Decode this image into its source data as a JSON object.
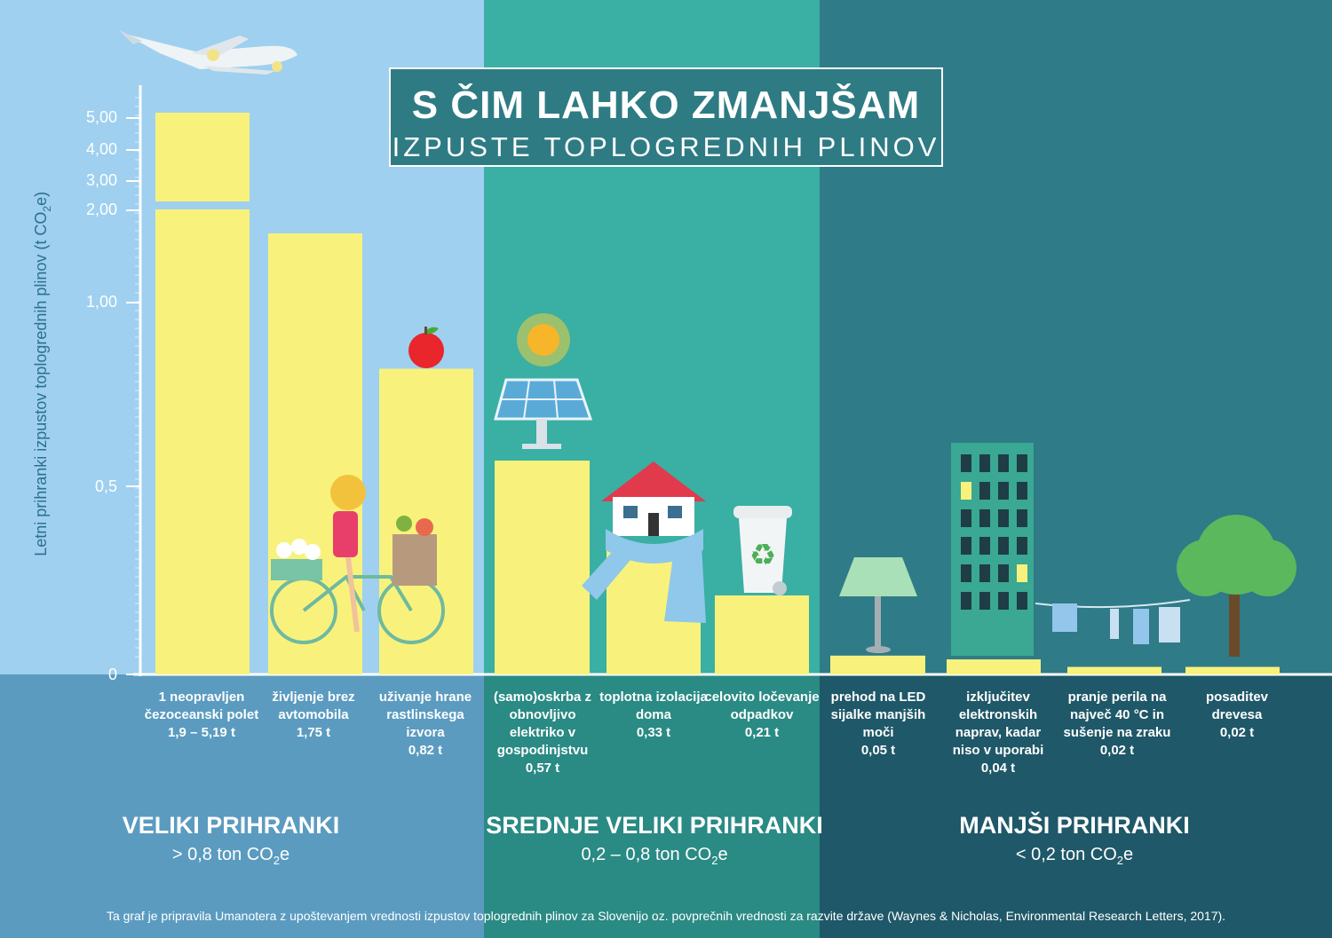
{
  "title": {
    "main": "S ČIM LAHKO ZMANJŠAM",
    "sub": "IZPUSTE  TOPLOGREDNIH  PLINOV"
  },
  "colors": {
    "panel_large": "#9fd0ef",
    "panel_medium": "#3aafa3",
    "panel_small": "#2f7b87",
    "bottom_large": "#5b9bc0",
    "bottom_medium": "#2a8a84",
    "bottom_small": "#1f5868",
    "bar": "#f8f27c",
    "axis": "#ffffff"
  },
  "chart_data": {
    "type": "bar",
    "ylabel": "Letni prihranki izpustov toplogrednih plinov (t CO",
    "ylabel_sub": "2",
    "ylabel_end": "e)",
    "yticks": [
      "0",
      "0,5",
      "1,00",
      "2,00",
      "3,00",
      "4,00",
      "5,00"
    ],
    "axis_note": "broken non-linear y-axis (0 – 5 t CO2e)",
    "categories": [
      {
        "label": "1 neopravljen čezoceanski polet",
        "value_label": "1,9 – 5,19 t",
        "value": 5.19,
        "value_min": 1.9,
        "group": "large"
      },
      {
        "label": "življenje brez avtomobila",
        "value_label": "1,75 t",
        "value": 1.75,
        "group": "large"
      },
      {
        "label": "uživanje hrane rastlinskega izvora",
        "value_label": "0,82 t",
        "value": 0.82,
        "group": "large"
      },
      {
        "label": "(samo)oskrba z obnovljivo elektriko v gospodinjstvu",
        "value_label": "0,57 t",
        "value": 0.57,
        "group": "medium"
      },
      {
        "label": "toplotna izolacija doma",
        "value_label": "0,33 t",
        "value": 0.33,
        "group": "medium"
      },
      {
        "label": "celovito ločevanje odpadkov",
        "value_label": "0,21 t",
        "value": 0.21,
        "group": "medium"
      },
      {
        "label": "prehod na LED sijalke manjših moči",
        "value_label": "0,05 t",
        "value": 0.05,
        "group": "small"
      },
      {
        "label": "izključitev elektronskih naprav, kadar niso v uporabi",
        "value_label": "0,04 t",
        "value": 0.04,
        "group": "small"
      },
      {
        "label": "pranje perila na največ 40 °C in sušenje na zraku",
        "value_label": "0,02 t",
        "value": 0.02,
        "group": "small"
      },
      {
        "label": "posaditev drevesa",
        "value_label": "0,02 t",
        "value": 0.02,
        "group": "small"
      }
    ]
  },
  "groups": [
    {
      "name": "VELIKI PRIHRANKI",
      "range_pre": "> 0,8 ton CO",
      "range_sub": "2",
      "range_post": "e"
    },
    {
      "name": "SREDNJE VELIKI PRIHRANKI",
      "range_pre": "0,2 – 0,8 ton CO",
      "range_sub": "2",
      "range_post": "e"
    },
    {
      "name": "MANJŠI PRIHRANKI",
      "range_pre": "< 0,2 ton CO",
      "range_sub": "2",
      "range_post": "e"
    }
  ],
  "footnote": "Ta graf je pripravila Umanotera z upoštevanjem vrednosti izpustov toplogrednih plinov za Slovenijo oz. povprečnih vrednosti za razvite države (Waynes & Nicholas, Environmental Research Letters, 2017)."
}
